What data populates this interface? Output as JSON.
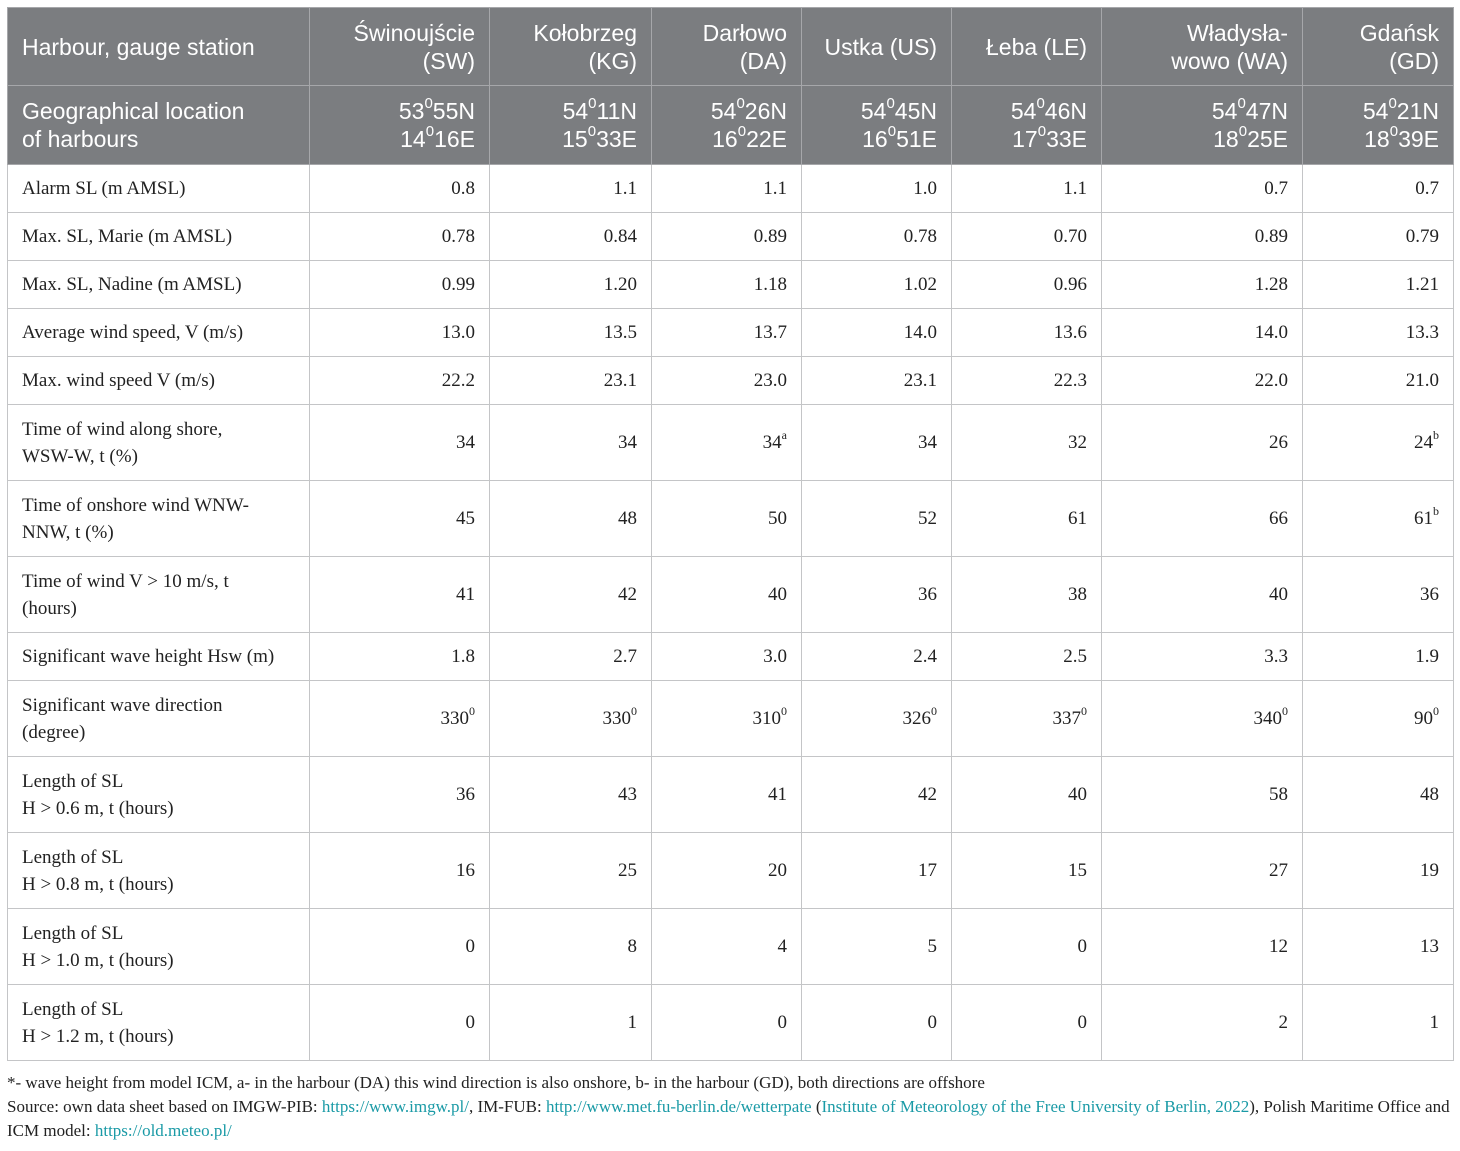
{
  "header": {
    "row_label": "Harbour, gauge station",
    "stations": [
      {
        "line1": "Świnoujście",
        "line2": "(SW)"
      },
      {
        "line1": "Kołobrzeg",
        "line2": "(KG)"
      },
      {
        "line1": "Darłowo",
        "line2": "(DA)"
      },
      {
        "line1": "Ustka (US)",
        "line2": ""
      },
      {
        "line1": "Łeba (LE)",
        "line2": ""
      },
      {
        "line1": "Władysła-",
        "line2": "wowo (WA)"
      },
      {
        "line1": "Gdańsk",
        "line2": "(GD)"
      }
    ]
  },
  "geo": {
    "label_line1": "Geographical location",
    "label_line2": "of harbours",
    "coords": [
      {
        "lat_deg": "53",
        "lat_sup": "0",
        "lat_rest": "55N",
        "lon_deg": "14",
        "lon_sup": "0",
        "lon_rest": "16E"
      },
      {
        "lat_deg": "54",
        "lat_sup": "0",
        "lat_rest": "11N",
        "lon_deg": "15",
        "lon_sup": "0",
        "lon_rest": "33E"
      },
      {
        "lat_deg": "54",
        "lat_sup": "0",
        "lat_rest": "26N",
        "lon_deg": "16",
        "lon_sup": "0",
        "lon_rest": "22E"
      },
      {
        "lat_deg": "54",
        "lat_sup": "0",
        "lat_rest": "45N",
        "lon_deg": "16",
        "lon_sup": "0",
        "lon_rest": "51E"
      },
      {
        "lat_deg": "54",
        "lat_sup": "0",
        "lat_rest": "46N",
        "lon_deg": "17",
        "lon_sup": "0",
        "lon_rest": "33E"
      },
      {
        "lat_deg": "54",
        "lat_sup": "0",
        "lat_rest": "47N",
        "lon_deg": "18",
        "lon_sup": "0",
        "lon_rest": "25E"
      },
      {
        "lat_deg": "54",
        "lat_sup": "0",
        "lat_rest": "21N",
        "lon_deg": "18",
        "lon_sup": "0",
        "lon_rest": "39E"
      }
    ]
  },
  "rows": [
    {
      "label1": "Alarm SL (m AMSL)",
      "label2": "",
      "values": [
        {
          "v": "0.8",
          "s": ""
        },
        {
          "v": "1.1",
          "s": ""
        },
        {
          "v": "1.1",
          "s": ""
        },
        {
          "v": "1.0",
          "s": ""
        },
        {
          "v": "1.1",
          "s": ""
        },
        {
          "v": "0.7",
          "s": ""
        },
        {
          "v": "0.7",
          "s": ""
        }
      ]
    },
    {
      "label1": "Max. SL, Marie (m AMSL)",
      "label2": "",
      "values": [
        {
          "v": "0.78",
          "s": ""
        },
        {
          "v": "0.84",
          "s": ""
        },
        {
          "v": "0.89",
          "s": ""
        },
        {
          "v": "0.78",
          "s": ""
        },
        {
          "v": "0.70",
          "s": ""
        },
        {
          "v": "0.89",
          "s": ""
        },
        {
          "v": "0.79",
          "s": ""
        }
      ]
    },
    {
      "label1": "Max. SL, Nadine (m AMSL)",
      "label2": "",
      "values": [
        {
          "v": "0.99",
          "s": ""
        },
        {
          "v": "1.20",
          "s": ""
        },
        {
          "v": "1.18",
          "s": ""
        },
        {
          "v": "1.02",
          "s": ""
        },
        {
          "v": "0.96",
          "s": ""
        },
        {
          "v": "1.28",
          "s": ""
        },
        {
          "v": "1.21",
          "s": ""
        }
      ]
    },
    {
      "label1": "Average wind speed, V (m/s)",
      "label2": "",
      "values": [
        {
          "v": "13.0",
          "s": ""
        },
        {
          "v": "13.5",
          "s": ""
        },
        {
          "v": "13.7",
          "s": ""
        },
        {
          "v": "14.0",
          "s": ""
        },
        {
          "v": "13.6",
          "s": ""
        },
        {
          "v": "14.0",
          "s": ""
        },
        {
          "v": "13.3",
          "s": ""
        }
      ]
    },
    {
      "label1": "Max. wind speed V (m/s)",
      "label2": "",
      "values": [
        {
          "v": "22.2",
          "s": ""
        },
        {
          "v": "23.1",
          "s": ""
        },
        {
          "v": "23.0",
          "s": ""
        },
        {
          "v": "23.1",
          "s": ""
        },
        {
          "v": "22.3",
          "s": ""
        },
        {
          "v": "22.0",
          "s": ""
        },
        {
          "v": "21.0",
          "s": ""
        }
      ]
    },
    {
      "label1": "Time of wind along shore,",
      "label2": "WSW-W, t (%)",
      "values": [
        {
          "v": "34",
          "s": ""
        },
        {
          "v": "34",
          "s": ""
        },
        {
          "v": "34",
          "s": "a"
        },
        {
          "v": "34",
          "s": ""
        },
        {
          "v": "32",
          "s": ""
        },
        {
          "v": "26",
          "s": ""
        },
        {
          "v": "24",
          "s": "b"
        }
      ]
    },
    {
      "label1": "Time of onshore wind WNW-",
      "label2": "NNW, t (%)",
      "values": [
        {
          "v": "45",
          "s": ""
        },
        {
          "v": "48",
          "s": ""
        },
        {
          "v": "50",
          "s": ""
        },
        {
          "v": "52",
          "s": ""
        },
        {
          "v": "61",
          "s": ""
        },
        {
          "v": "66",
          "s": ""
        },
        {
          "v": "61",
          "s": "b"
        }
      ]
    },
    {
      "label1": "Time of wind V > 10 m/s, t",
      "label2": "(hours)",
      "values": [
        {
          "v": "41",
          "s": ""
        },
        {
          "v": "42",
          "s": ""
        },
        {
          "v": "40",
          "s": ""
        },
        {
          "v": "36",
          "s": ""
        },
        {
          "v": "38",
          "s": ""
        },
        {
          "v": "40",
          "s": ""
        },
        {
          "v": "36",
          "s": ""
        }
      ]
    },
    {
      "label1": "Significant wave height Hsw (m)",
      "label2": "",
      "values": [
        {
          "v": "1.8",
          "s": ""
        },
        {
          "v": "2.7",
          "s": ""
        },
        {
          "v": "3.0",
          "s": ""
        },
        {
          "v": "2.4",
          "s": ""
        },
        {
          "v": "2.5",
          "s": ""
        },
        {
          "v": "3.3",
          "s": ""
        },
        {
          "v": "1.9",
          "s": ""
        }
      ]
    },
    {
      "label1": "Significant wave direction",
      "label2": "(degree)",
      "values": [
        {
          "v": "330",
          "s": "0"
        },
        {
          "v": "330",
          "s": "0"
        },
        {
          "v": "310",
          "s": "0"
        },
        {
          "v": "326",
          "s": "0"
        },
        {
          "v": "337",
          "s": "0"
        },
        {
          "v": "340",
          "s": "0"
        },
        {
          "v": "90",
          "s": "0"
        }
      ]
    },
    {
      "label1": "Length of SL",
      "label2": "H > 0.6 m, t (hours)",
      "values": [
        {
          "v": "36",
          "s": ""
        },
        {
          "v": "43",
          "s": ""
        },
        {
          "v": "41",
          "s": ""
        },
        {
          "v": "42",
          "s": ""
        },
        {
          "v": "40",
          "s": ""
        },
        {
          "v": "58",
          "s": ""
        },
        {
          "v": "48",
          "s": ""
        }
      ]
    },
    {
      "label1": "Length of SL",
      "label2": "H > 0.8 m, t (hours)",
      "values": [
        {
          "v": "16",
          "s": ""
        },
        {
          "v": "25",
          "s": ""
        },
        {
          "v": "20",
          "s": ""
        },
        {
          "v": "17",
          "s": ""
        },
        {
          "v": "15",
          "s": ""
        },
        {
          "v": "27",
          "s": ""
        },
        {
          "v": "19",
          "s": ""
        }
      ]
    },
    {
      "label1": "Length of SL",
      "label2": "H > 1.0 m, t (hours)",
      "values": [
        {
          "v": "0",
          "s": ""
        },
        {
          "v": "8",
          "s": ""
        },
        {
          "v": "4",
          "s": ""
        },
        {
          "v": "5",
          "s": ""
        },
        {
          "v": "0",
          "s": ""
        },
        {
          "v": "12",
          "s": ""
        },
        {
          "v": "13",
          "s": ""
        }
      ]
    },
    {
      "label1": "Length of SL",
      "label2": "H > 1.2 m, t (hours)",
      "values": [
        {
          "v": "0",
          "s": ""
        },
        {
          "v": "1",
          "s": ""
        },
        {
          "v": "0",
          "s": ""
        },
        {
          "v": "0",
          "s": ""
        },
        {
          "v": "0",
          "s": ""
        },
        {
          "v": "2",
          "s": ""
        },
        {
          "v": "1",
          "s": ""
        }
      ]
    }
  ],
  "notes": {
    "footnote": "*- wave height from model ICM, a- in the harbour (DA) this wind direction is also onshore, b- in the harbour (GD), both directions are offshore",
    "source_prefix": "Source: own data sheet based on IMGW-PIB: ",
    "link_imgw": "https://www.imgw.pl/",
    "mid1": ", IM-FUB: ",
    "link_fub": "http://www.met.fu-berlin.de/wetterpate",
    "paren_open": " (",
    "citation": "Institute of Meteorology of the Free University of Berlin, 2022",
    "mid2": "), Polish Maritime Office and ICM model: ",
    "link_icm": "https://old.meteo.pl/"
  }
}
